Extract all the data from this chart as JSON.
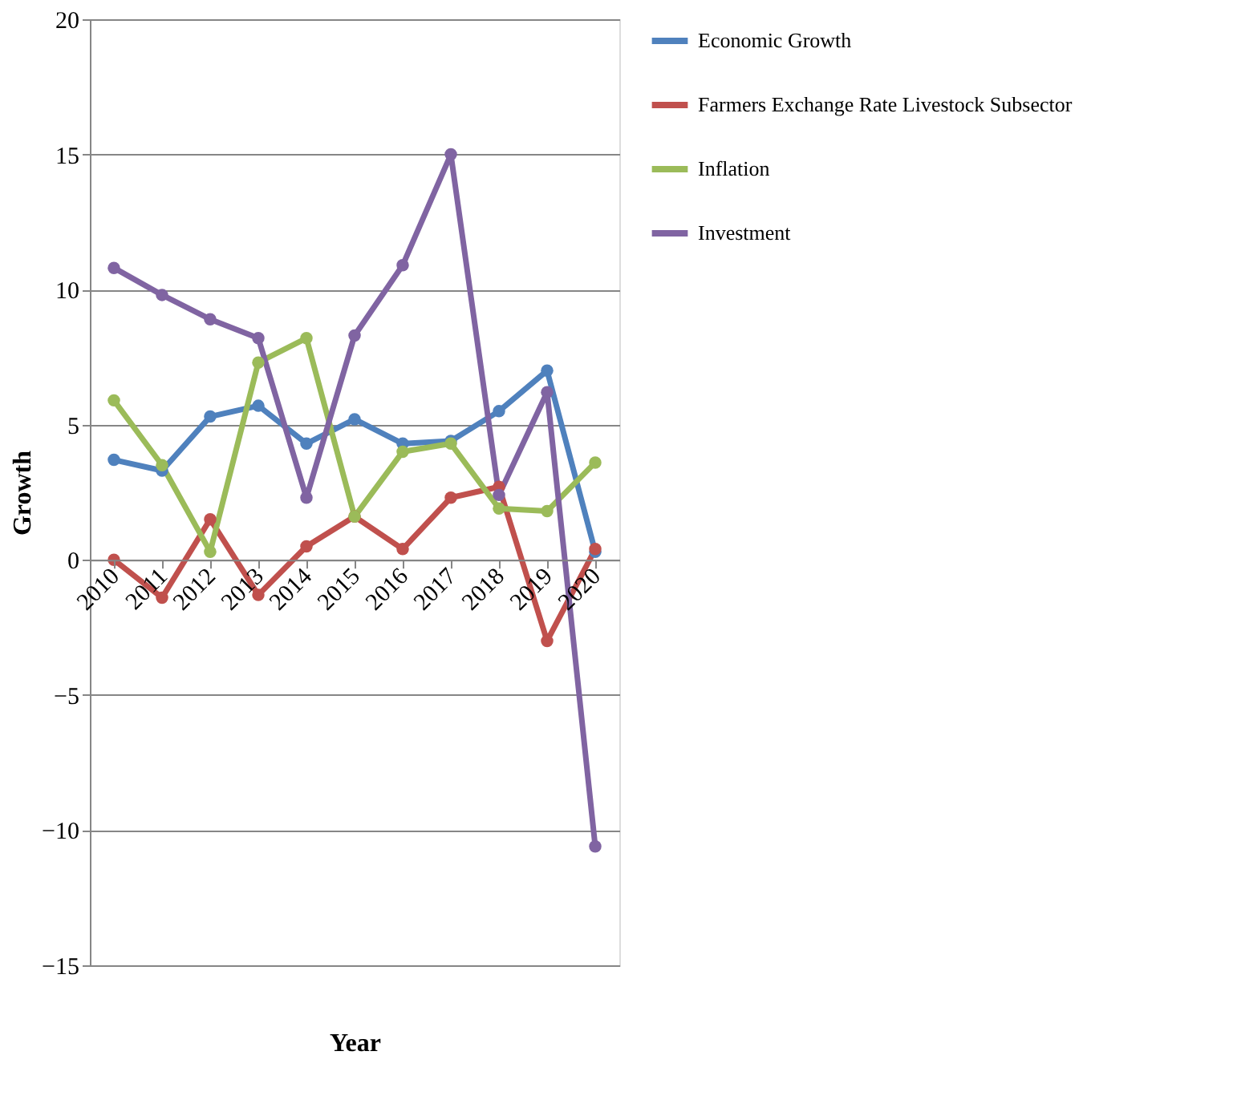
{
  "chart_data": {
    "type": "line",
    "xlabel": "Year",
    "ylabel": "Growth",
    "categories": [
      "2010",
      "2011",
      "2012",
      "2013",
      "2014",
      "2015",
      "2016",
      "2017",
      "2018",
      "2019",
      "2020"
    ],
    "series": [
      {
        "name": "Economic Growth",
        "color": "#4f81bd",
        "values": [
          3.7,
          3.3,
          5.3,
          5.7,
          4.3,
          5.2,
          4.3,
          4.4,
          5.5,
          7.0,
          0.3
        ]
      },
      {
        "name": "Farmers Exchange Rate Livestock Subsector",
        "color": "#c0504d",
        "values": [
          0.0,
          -1.4,
          1.5,
          -1.3,
          0.5,
          1.6,
          0.4,
          2.3,
          2.7,
          -3.0,
          0.4
        ]
      },
      {
        "name": "Inflation",
        "color": "#9bbb59",
        "values": [
          5.9,
          3.5,
          0.3,
          7.3,
          8.2,
          1.6,
          4.0,
          4.3,
          1.9,
          1.8,
          3.6
        ]
      },
      {
        "name": "Investment",
        "color": "#8064a2",
        "values": [
          10.8,
          9.8,
          8.9,
          8.2,
          2.3,
          8.3,
          10.9,
          15.0,
          2.4,
          6.2,
          -10.6
        ]
      }
    ],
    "ylim": [
      -15,
      20
    ],
    "yticks": [
      -15,
      -10,
      -5,
      0,
      5,
      10,
      15,
      20
    ],
    "grid": "y",
    "legend": "right",
    "marker": "circle",
    "line_style": "solid"
  }
}
